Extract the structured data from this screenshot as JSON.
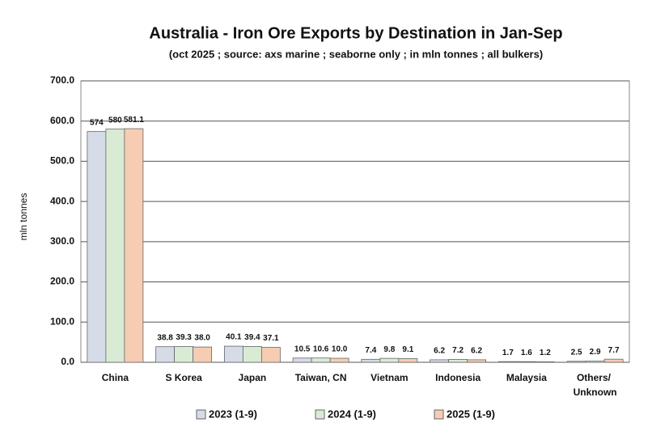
{
  "chart_data": {
    "type": "bar",
    "title": "Australia - Iron Ore Exports by Destination in Jan-Sep",
    "subtitle": "(oct 2025 ; source: axs marine ; seaborne only ; in mln tonnes ; all bulkers)",
    "y_label": "mln tonnes",
    "categories": [
      "China",
      "S Korea",
      "Japan",
      "Taiwan, CN",
      "Vietnam",
      "Indonesia",
      "Malaysia",
      "Others/ Unknown"
    ],
    "series": [
      {
        "name": "2023 (1-9)",
        "color": "#d6dbe8",
        "values": [
          574,
          38.8,
          40.1,
          10.5,
          7.4,
          6.2,
          1.7,
          2.5
        ],
        "value_labels": [
          "574",
          "38.8",
          "40.1",
          "10.5",
          "7.4",
          "6.2",
          "1.7",
          "2.5"
        ]
      },
      {
        "name": "2024 (1-9)",
        "color": "#d9ebd4",
        "values": [
          580,
          39.3,
          39.4,
          10.6,
          9.8,
          7.2,
          1.6,
          2.9
        ],
        "value_labels": [
          "580",
          "39.3",
          "39.4",
          "10.6",
          "9.8",
          "7.2",
          "1.6",
          "2.9"
        ]
      },
      {
        "name": "2025 (1-9)",
        "color": "#f6cdb2",
        "values": [
          581.1,
          38.0,
          37.1,
          10.0,
          9.1,
          6.2,
          1.2,
          7.7
        ],
        "value_labels": [
          "581.1",
          "38.0",
          "37.1",
          "10.0",
          "9.1",
          "6.2",
          "1.2",
          "7.7"
        ]
      }
    ],
    "ylim": [
      0,
      700
    ],
    "yticks": [
      {
        "value": 0,
        "label": "0.0"
      },
      {
        "value": 100,
        "label": "100.0"
      },
      {
        "value": 200,
        "label": "200.0"
      },
      {
        "value": 300,
        "label": "300.0"
      },
      {
        "value": 400,
        "label": "400.0"
      },
      {
        "value": 500,
        "label": "500.0"
      },
      {
        "value": 600,
        "label": "600.0"
      },
      {
        "value": 700,
        "label": "700.0"
      }
    ],
    "grid": true
  }
}
